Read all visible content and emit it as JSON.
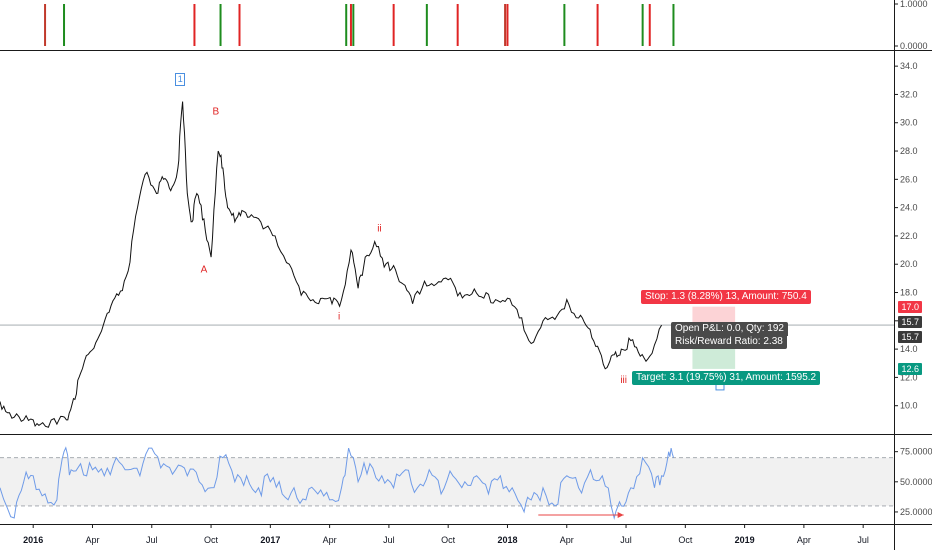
{
  "chart_data": [
    {
      "type": "bar",
      "panel": "signals",
      "ylim": [
        0,
        1
      ],
      "y_ticks": [
        "1.0000",
        "0.0000"
      ],
      "signal_dates": [
        {
          "t": 2016.05,
          "color": "#c0392b"
        },
        {
          "t": 2016.13,
          "color": "#1e8c1e"
        },
        {
          "t": 2016.68,
          "color": "#e02424"
        },
        {
          "t": 2016.79,
          "color": "#1e8c1e"
        },
        {
          "t": 2016.87,
          "color": "#e02424"
        },
        {
          "t": 2017.32,
          "color": "#1e8c1e"
        },
        {
          "t": 2017.34,
          "color": "#e02424"
        },
        {
          "t": 2017.35,
          "color": "#1e8c1e"
        },
        {
          "t": 2017.52,
          "color": "#e02424"
        },
        {
          "t": 2017.66,
          "color": "#1e8c1e"
        },
        {
          "t": 2017.79,
          "color": "#e02424"
        },
        {
          "t": 2017.99,
          "color": "#c0392b"
        },
        {
          "t": 2018.0,
          "color": "#e02424"
        },
        {
          "t": 2018.24,
          "color": "#1e8c1e"
        },
        {
          "t": 2018.38,
          "color": "#e02424"
        },
        {
          "t": 2018.57,
          "color": "#1e8c1e"
        },
        {
          "t": 2018.6,
          "color": "#e02424"
        },
        {
          "t": 2018.7,
          "color": "#1e8c1e"
        }
      ]
    },
    {
      "type": "line",
      "panel": "price",
      "ylim": [
        8,
        35
      ],
      "y_ticks": [
        10.0,
        12.0,
        14.0,
        16.0,
        18.0,
        20.0,
        22.0,
        24.0,
        26.0,
        28.0,
        30.0,
        32.0,
        34.0
      ],
      "series": [
        {
          "x": [
            2015.86,
            2015.9,
            2015.95,
            2016.0,
            2016.04,
            2016.1,
            2016.14,
            2016.17,
            2016.2,
            2016.24,
            2016.28,
            2016.32,
            2016.36,
            2016.4,
            2016.44,
            2016.48,
            2016.52,
            2016.55,
            2016.58,
            2016.61,
            2016.63,
            2016.65,
            2016.67,
            2016.69,
            2016.72,
            2016.75,
            2016.78,
            2016.8,
            2016.82,
            2016.85,
            2016.88,
            2016.92,
            2016.97,
            2017.02,
            2017.08,
            2017.13,
            2017.18,
            2017.22,
            2017.26,
            2017.3,
            2017.34,
            2017.37,
            2017.4,
            2017.44,
            2017.48,
            2017.52,
            2017.56,
            2017.6,
            2017.65,
            2017.7,
            2017.75,
            2017.8,
            2017.85,
            2017.9,
            2017.95,
            2018.0,
            2018.05,
            2018.1,
            2018.15,
            2018.2,
            2018.25,
            2018.3,
            2018.34,
            2018.38,
            2018.42,
            2018.45,
            2018.48,
            2018.52,
            2018.56,
            2018.6,
            2018.65
          ],
          "y": [
            10.3,
            9.5,
            8.9,
            9.0,
            8.8,
            8.7,
            9.0,
            10.5,
            12.3,
            13.8,
            15.0,
            16.6,
            17.8,
            19.5,
            24.0,
            26.5,
            25.0,
            26.0,
            25.2,
            26.8,
            31.5,
            25.0,
            23.0,
            25.0,
            23.2,
            20.5,
            28.0,
            26.8,
            24.0,
            23.0,
            23.8,
            23.5,
            22.5,
            22.0,
            20.0,
            17.8,
            17.5,
            17.6,
            17.2,
            17.5,
            21.0,
            18.3,
            20.5,
            21.6,
            19.8,
            19.9,
            18.6,
            17.2,
            18.8,
            18.6,
            18.9,
            18.0,
            17.9,
            17.6,
            17.5,
            17.6,
            16.2,
            14.4,
            16.0,
            16.1,
            17.5,
            16.2,
            15.5,
            14.2,
            12.7,
            13.6,
            14.0,
            14.6,
            13.5,
            13.5,
            15.7
          ]
        }
      ],
      "last_price": 15.7,
      "annotations": [
        {
          "label": "1",
          "t": 2016.62,
          "v": 33.0,
          "style": "box"
        },
        {
          "label": "B",
          "t": 2016.77,
          "v": 30.6
        },
        {
          "label": "A",
          "t": 2016.72,
          "v": 19.4
        },
        {
          "label": "i",
          "t": 2017.29,
          "v": 16.1
        },
        {
          "label": "ii",
          "t": 2017.46,
          "v": 22.3
        },
        {
          "label": "iii",
          "t": 2018.49,
          "v": 11.6
        }
      ],
      "position": {
        "entry": 15.7,
        "stop": 17.0,
        "target": 12.6,
        "t_start": 2018.78,
        "t_end": 2018.96,
        "stop_label": "Stop: 1.3 (8.28%) 13, Amount: 750.4",
        "target_label": "Target: 3.1 (19.75%) 31, Amount: 1595.2",
        "info_line1": "Open P&L: 0.0, Qty: 192",
        "info_line2": "Risk/Reward Ratio: 2.38"
      },
      "price_tags": [
        {
          "value": "17.0",
          "v": 17.0,
          "color": "#f23645"
        },
        {
          "value": "15.7",
          "v": 15.95,
          "color": "#3a3a3a"
        },
        {
          "value": "15.7",
          "v": 14.85,
          "color": "#3a3a3a"
        },
        {
          "value": "12.6",
          "v": 12.6,
          "color": "#089981"
        }
      ]
    },
    {
      "type": "line",
      "panel": "rsi",
      "ylim": [
        15,
        88
      ],
      "y_ticks": [
        "75.0000",
        "50.0000",
        "25.0000"
      ],
      "bands": [
        70,
        30
      ],
      "series": [
        {
          "x": [
            2015.86,
            2015.92,
            2015.96,
            2016.0,
            2016.05,
            2016.1,
            2016.13,
            2016.16,
            2016.2,
            2016.25,
            2016.3,
            2016.35,
            2016.4,
            2016.45,
            2016.5,
            2016.55,
            2016.6,
            2016.65,
            2016.7,
            2016.75,
            2016.8,
            2016.85,
            2016.9,
            2016.95,
            2017.0,
            2017.05,
            2017.1,
            2017.15,
            2017.2,
            2017.25,
            2017.3,
            2017.33,
            2017.37,
            2017.42,
            2017.47,
            2017.52,
            2017.57,
            2017.62,
            2017.67,
            2017.72,
            2017.77,
            2017.82,
            2017.87,
            2017.92,
            2017.97,
            2018.02,
            2018.07,
            2018.1,
            2018.15,
            2018.2,
            2018.25,
            2018.3,
            2018.35,
            2018.4,
            2018.45,
            2018.48,
            2018.52,
            2018.57,
            2018.62,
            2018.65,
            2018.68,
            2018.7
          ],
          "y": [
            45,
            20,
            50,
            55,
            40,
            35,
            75,
            60,
            65,
            60,
            55,
            70,
            60,
            55,
            78,
            65,
            60,
            55,
            50,
            45,
            70,
            50,
            55,
            45,
            50,
            40,
            45,
            35,
            40,
            35,
            45,
            78,
            50,
            65,
            55,
            45,
            60,
            45,
            60,
            40,
            55,
            50,
            55,
            40,
            55,
            45,
            25,
            35,
            45,
            30,
            55,
            45,
            60,
            55,
            20,
            30,
            45,
            70,
            45,
            55,
            75,
            70
          ]
        }
      ],
      "divergence": {
        "t_start": 2018.13,
        "t_end": 2018.49,
        "v": 22.5
      }
    }
  ],
  "x_axis": {
    "ticks": [
      {
        "label": "2016",
        "t": 2016.0,
        "year": true
      },
      {
        "label": "Apr",
        "t": 2016.25
      },
      {
        "label": "Jul",
        "t": 2016.5
      },
      {
        "label": "Oct",
        "t": 2016.75
      },
      {
        "label": "2017",
        "t": 2017.0,
        "year": true
      },
      {
        "label": "Apr",
        "t": 2017.25
      },
      {
        "label": "Jul",
        "t": 2017.5
      },
      {
        "label": "Oct",
        "t": 2017.75
      },
      {
        "label": "2018",
        "t": 2018.0,
        "year": true
      },
      {
        "label": "Apr",
        "t": 2018.25
      },
      {
        "label": "Jul",
        "t": 2018.5
      },
      {
        "label": "Oct",
        "t": 2018.75
      },
      {
        "label": "2019",
        "t": 2019.0,
        "year": true
      },
      {
        "label": "Apr",
        "t": 2019.25
      },
      {
        "label": "Jul",
        "t": 2019.5
      }
    ]
  }
}
